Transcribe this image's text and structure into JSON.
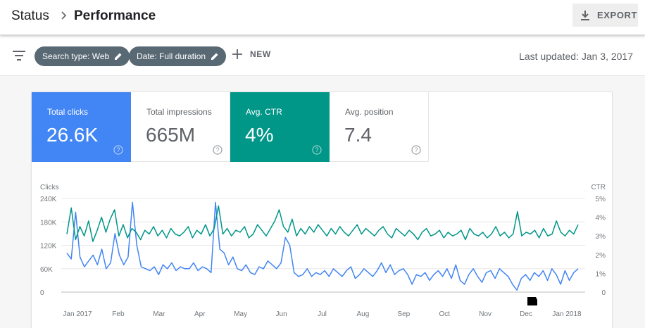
{
  "header": {
    "breadcrumb_root": "Status",
    "breadcrumb_current": "Performance",
    "export_label": "EXPORT"
  },
  "filters": {
    "search_type_chip": "Search type: Web",
    "date_chip": "Date: Full duration",
    "new_label": "NEW",
    "last_updated": "Last updated: Jan 3, 2017"
  },
  "metrics": [
    {
      "label": "Total clicks",
      "value": "26.6K",
      "active": true,
      "color": "#4285f4"
    },
    {
      "label": "Total impressions",
      "value": "665M",
      "active": false
    },
    {
      "label": "Avg. CTR",
      "value": "4%",
      "active": true,
      "color": "#009688"
    },
    {
      "label": "Avg. position",
      "value": "7.4",
      "active": false
    }
  ],
  "icons": [
    "chevron-right-icon",
    "download-icon",
    "filter-icon",
    "pencil-icon",
    "plus-icon",
    "help-icon",
    "annotation-flag-icon"
  ],
  "chart_data": {
    "type": "line",
    "left_axis_label": "Clicks",
    "right_axis_label": "CTR",
    "left_ticks": [
      "0",
      "60K",
      "120K",
      "180K",
      "240K"
    ],
    "right_ticks": [
      "0",
      "1%",
      "2%",
      "3%",
      "4%",
      "5%"
    ],
    "ylim_left": [
      0,
      240000
    ],
    "ylim_right": [
      0,
      5
    ],
    "x_tick_labels": [
      "Jan 2017",
      "Feb",
      "Mar",
      "Apr",
      "May",
      "Jun",
      "Jul",
      "Aug",
      "Sep",
      "Oct",
      "Nov",
      "Dec",
      "Jan 2018"
    ],
    "grid": true,
    "legend": "none",
    "series": [
      {
        "axis": "left",
        "color": "#4285f4",
        "values": [
          100000,
          85000,
          205000,
          90000,
          65000,
          80000,
          95000,
          70000,
          110000,
          60000,
          75000,
          150000,
          95000,
          70000,
          90000,
          230000,
          120000,
          65000,
          60000,
          55000,
          65000,
          45000,
          70000,
          60000,
          75000,
          55000,
          65000,
          60000,
          60000,
          75000,
          55000,
          65000,
          60000,
          50000,
          230000,
          110000,
          100000,
          70000,
          90000,
          60000,
          55000,
          70000,
          50000,
          45000,
          65000,
          60000,
          80000,
          70000,
          60000,
          75000,
          140000,
          120000,
          50000,
          40000,
          45000,
          60000,
          40000,
          50000,
          45000,
          55000,
          40000,
          60000,
          50000,
          40000,
          55000,
          65000,
          35000,
          45000,
          60000,
          50000,
          40000,
          55000,
          75000,
          50000,
          70000,
          45000,
          55000,
          60000,
          45000,
          20000,
          45000,
          40000,
          50000,
          30000,
          45000,
          55000,
          40000,
          60000,
          35000,
          70000,
          30000,
          20000,
          45000,
          60000,
          40000,
          25000,
          50000,
          55000,
          35000,
          60000,
          50000,
          40000,
          20000,
          5000,
          35000,
          45000,
          30000,
          50000,
          40000,
          55000,
          30000,
          60000,
          45000,
          20000,
          55000,
          30000,
          50000,
          60000
        ]
      },
      {
        "axis": "right",
        "color": "#009688",
        "values": [
          3.1,
          4.5,
          2.8,
          3.5,
          3.0,
          3.8,
          2.7,
          3.3,
          4.0,
          3.2,
          3.9,
          4.4,
          3.0,
          3.6,
          2.9,
          3.4,
          3.2,
          2.8,
          3.3,
          3.1,
          3.5,
          3.0,
          3.3,
          2.9,
          3.4,
          3.1,
          3.0,
          3.2,
          3.5,
          2.9,
          3.3,
          3.1,
          3.6,
          3.0,
          3.4,
          4.6,
          3.1,
          3.4,
          3.0,
          3.3,
          3.2,
          3.5,
          2.9,
          3.1,
          3.6,
          3.3,
          3.0,
          3.4,
          3.8,
          4.4,
          3.5,
          3.2,
          3.9,
          3.0,
          3.4,
          3.1,
          3.5,
          3.2,
          3.6,
          3.3,
          3.0,
          3.4,
          3.1,
          3.5,
          3.2,
          3.0,
          3.3,
          3.6,
          3.1,
          3.4,
          3.2,
          3.0,
          3.3,
          3.5,
          3.1,
          2.9,
          3.4,
          3.2,
          3.0,
          3.3,
          3.1,
          2.8,
          3.2,
          3.4,
          3.0,
          3.1,
          3.3,
          2.9,
          3.2,
          3.0,
          3.1,
          3.3,
          2.8,
          3.4,
          3.1,
          3.0,
          3.2,
          2.9,
          3.1,
          3.5,
          3.0,
          3.2,
          2.9,
          3.1,
          4.3,
          3.0,
          3.2,
          3.1,
          3.3,
          2.9,
          3.4,
          3.0,
          3.1,
          3.8,
          3.2,
          3.0,
          3.3,
          3.1,
          3.6
        ]
      }
    ]
  }
}
